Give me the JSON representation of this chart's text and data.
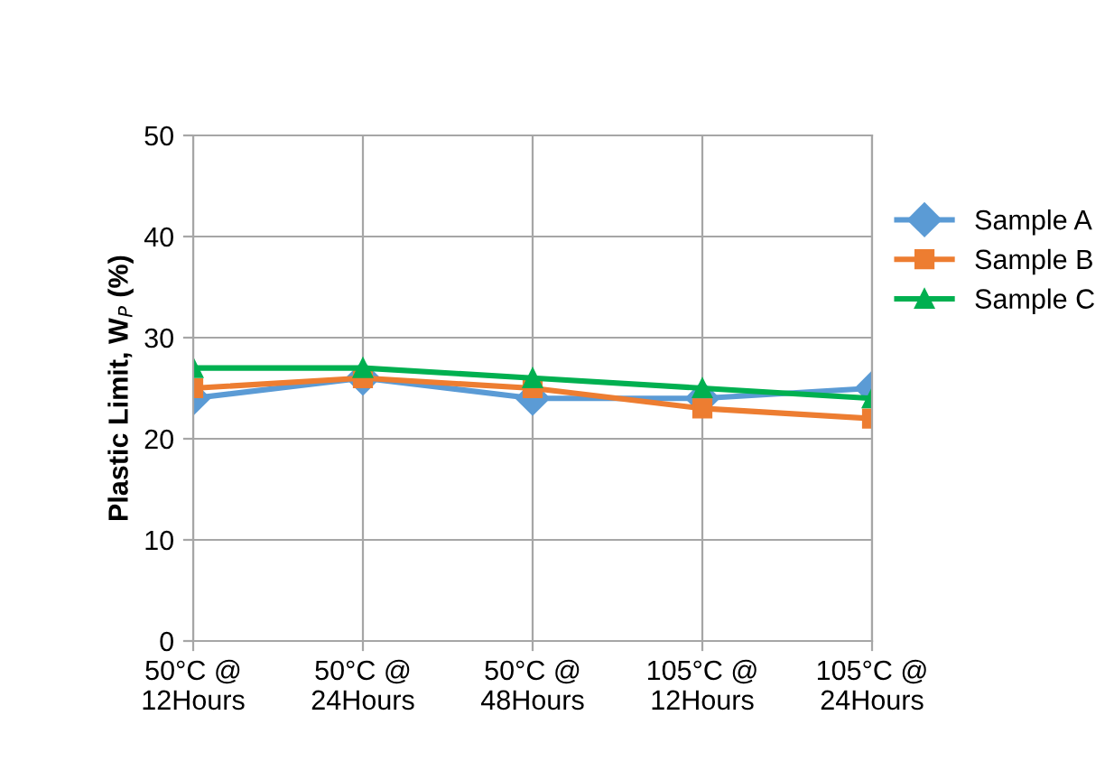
{
  "chart_data": {
    "type": "line",
    "ylabel": "Plastic Limit, W$_{P}$ (%)",
    "categories": [
      "50°C @\n12Hours",
      "50°C @\n24Hours",
      "50°C @\n48Hours",
      "105°C @\n12Hours",
      "105°C @\n24Hours"
    ],
    "series": [
      {
        "name": "Sample A",
        "color": "#5b9bd5",
        "marker": "diamond",
        "values": [
          24,
          26,
          24,
          24,
          25
        ]
      },
      {
        "name": "Sample B",
        "color": "#ed7d31",
        "marker": "square",
        "values": [
          25,
          26,
          25,
          23,
          22
        ]
      },
      {
        "name": "Sample C",
        "color": "#00b050",
        "marker": "triangle",
        "values": [
          27,
          27,
          26,
          25,
          24
        ]
      }
    ],
    "ylim": [
      0,
      50
    ],
    "yticks": [
      0,
      10,
      20,
      30,
      40,
      50
    ],
    "grid": true,
    "legend": "right"
  }
}
